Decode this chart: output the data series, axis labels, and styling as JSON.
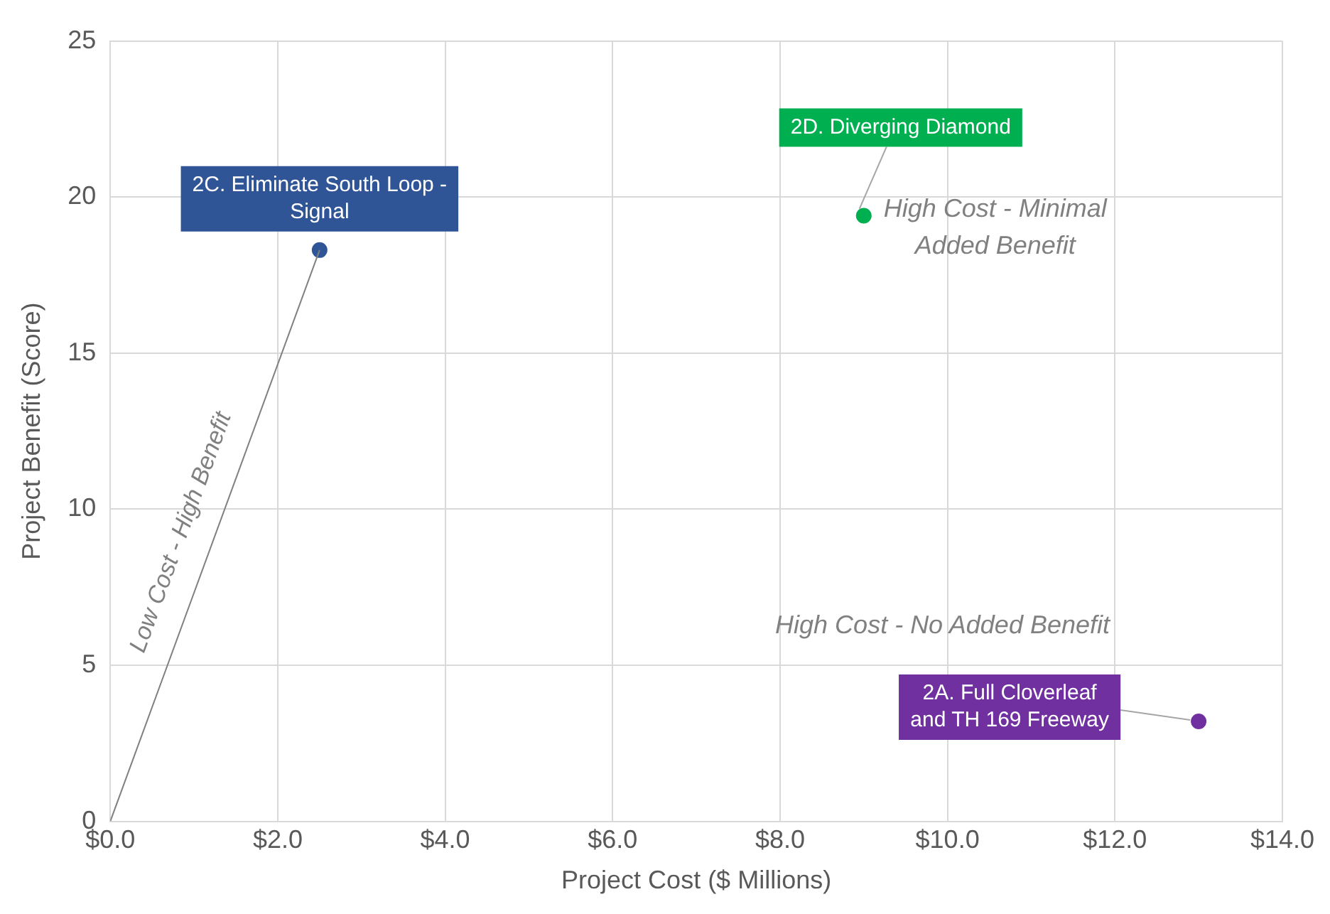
{
  "chart_data": {
    "type": "scatter",
    "xlabel": "Project Cost ($ Millions)",
    "ylabel": "Project Benefit (Score)",
    "xlim": [
      0,
      14
    ],
    "xticks": [
      {
        "value": 0,
        "label": "$0.0"
      },
      {
        "value": 2,
        "label": "$2.0"
      },
      {
        "value": 4,
        "label": "$4.0"
      },
      {
        "value": 6,
        "label": "$6.0"
      },
      {
        "value": 8,
        "label": "$8.0"
      },
      {
        "value": 10,
        "label": "$10.0"
      },
      {
        "value": 12,
        "label": "$12.0"
      },
      {
        "value": 14,
        "label": "$14.0"
      }
    ],
    "ylim": [
      0,
      25
    ],
    "yticks": [
      0,
      5,
      10,
      15,
      20,
      25
    ],
    "grid": true,
    "legend": false,
    "marker": "circle",
    "series": [
      {
        "type": "line",
        "name": "Low Cost - High Benefit",
        "color": "#808080",
        "x": [
          0,
          2.5
        ],
        "values": [
          0,
          18.3
        ],
        "marker": "none"
      },
      {
        "name": "2C. Eliminate South Loop - Signal",
        "color": "#2f5597",
        "x": [
          2.5
        ],
        "values": [
          18.3
        ]
      },
      {
        "name": "2D. Diverging Diamond",
        "color": "#00b050",
        "x": [
          9.0
        ],
        "values": [
          19.4
        ]
      },
      {
        "name": "2A. Full Cloverleaf and TH 169 Freeway",
        "color": "#7030a0",
        "x": [
          13.0
        ],
        "values": [
          3.2
        ]
      }
    ],
    "annotations": [
      "High Cost - Minimal Added Benefit",
      "High Cost - No Added Benefit"
    ]
  }
}
